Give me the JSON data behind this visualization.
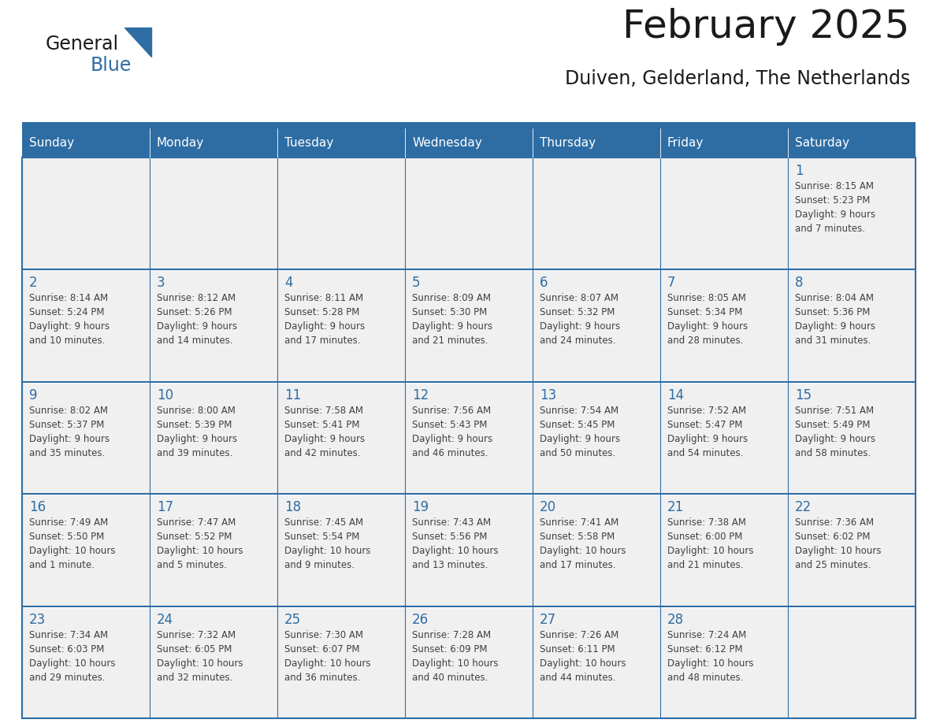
{
  "title": "February 2025",
  "subtitle": "Duiven, Gelderland, The Netherlands",
  "days_of_week": [
    "Sunday",
    "Monday",
    "Tuesday",
    "Wednesday",
    "Thursday",
    "Friday",
    "Saturday"
  ],
  "header_bg": "#2E6DA4",
  "header_text": "#FFFFFF",
  "cell_bg": "#F0F0F0",
  "cell_border_color": "#2E6DA4",
  "day_number_color": "#2E6DA4",
  "cell_text_color": "#404040",
  "title_color": "#1a1a1a",
  "subtitle_color": "#1a1a1a",
  "logo_general_color": "#1a1a1a",
  "logo_blue_color": "#2E6DA4",
  "calendar_data": [
    [
      {
        "day": "",
        "info": ""
      },
      {
        "day": "",
        "info": ""
      },
      {
        "day": "",
        "info": ""
      },
      {
        "day": "",
        "info": ""
      },
      {
        "day": "",
        "info": ""
      },
      {
        "day": "",
        "info": ""
      },
      {
        "day": "1",
        "info": "Sunrise: 8:15 AM\nSunset: 5:23 PM\nDaylight: 9 hours\nand 7 minutes."
      }
    ],
    [
      {
        "day": "2",
        "info": "Sunrise: 8:14 AM\nSunset: 5:24 PM\nDaylight: 9 hours\nand 10 minutes."
      },
      {
        "day": "3",
        "info": "Sunrise: 8:12 AM\nSunset: 5:26 PM\nDaylight: 9 hours\nand 14 minutes."
      },
      {
        "day": "4",
        "info": "Sunrise: 8:11 AM\nSunset: 5:28 PM\nDaylight: 9 hours\nand 17 minutes."
      },
      {
        "day": "5",
        "info": "Sunrise: 8:09 AM\nSunset: 5:30 PM\nDaylight: 9 hours\nand 21 minutes."
      },
      {
        "day": "6",
        "info": "Sunrise: 8:07 AM\nSunset: 5:32 PM\nDaylight: 9 hours\nand 24 minutes."
      },
      {
        "day": "7",
        "info": "Sunrise: 8:05 AM\nSunset: 5:34 PM\nDaylight: 9 hours\nand 28 minutes."
      },
      {
        "day": "8",
        "info": "Sunrise: 8:04 AM\nSunset: 5:36 PM\nDaylight: 9 hours\nand 31 minutes."
      }
    ],
    [
      {
        "day": "9",
        "info": "Sunrise: 8:02 AM\nSunset: 5:37 PM\nDaylight: 9 hours\nand 35 minutes."
      },
      {
        "day": "10",
        "info": "Sunrise: 8:00 AM\nSunset: 5:39 PM\nDaylight: 9 hours\nand 39 minutes."
      },
      {
        "day": "11",
        "info": "Sunrise: 7:58 AM\nSunset: 5:41 PM\nDaylight: 9 hours\nand 42 minutes."
      },
      {
        "day": "12",
        "info": "Sunrise: 7:56 AM\nSunset: 5:43 PM\nDaylight: 9 hours\nand 46 minutes."
      },
      {
        "day": "13",
        "info": "Sunrise: 7:54 AM\nSunset: 5:45 PM\nDaylight: 9 hours\nand 50 minutes."
      },
      {
        "day": "14",
        "info": "Sunrise: 7:52 AM\nSunset: 5:47 PM\nDaylight: 9 hours\nand 54 minutes."
      },
      {
        "day": "15",
        "info": "Sunrise: 7:51 AM\nSunset: 5:49 PM\nDaylight: 9 hours\nand 58 minutes."
      }
    ],
    [
      {
        "day": "16",
        "info": "Sunrise: 7:49 AM\nSunset: 5:50 PM\nDaylight: 10 hours\nand 1 minute."
      },
      {
        "day": "17",
        "info": "Sunrise: 7:47 AM\nSunset: 5:52 PM\nDaylight: 10 hours\nand 5 minutes."
      },
      {
        "day": "18",
        "info": "Sunrise: 7:45 AM\nSunset: 5:54 PM\nDaylight: 10 hours\nand 9 minutes."
      },
      {
        "day": "19",
        "info": "Sunrise: 7:43 AM\nSunset: 5:56 PM\nDaylight: 10 hours\nand 13 minutes."
      },
      {
        "day": "20",
        "info": "Sunrise: 7:41 AM\nSunset: 5:58 PM\nDaylight: 10 hours\nand 17 minutes."
      },
      {
        "day": "21",
        "info": "Sunrise: 7:38 AM\nSunset: 6:00 PM\nDaylight: 10 hours\nand 21 minutes."
      },
      {
        "day": "22",
        "info": "Sunrise: 7:36 AM\nSunset: 6:02 PM\nDaylight: 10 hours\nand 25 minutes."
      }
    ],
    [
      {
        "day": "23",
        "info": "Sunrise: 7:34 AM\nSunset: 6:03 PM\nDaylight: 10 hours\nand 29 minutes."
      },
      {
        "day": "24",
        "info": "Sunrise: 7:32 AM\nSunset: 6:05 PM\nDaylight: 10 hours\nand 32 minutes."
      },
      {
        "day": "25",
        "info": "Sunrise: 7:30 AM\nSunset: 6:07 PM\nDaylight: 10 hours\nand 36 minutes."
      },
      {
        "day": "26",
        "info": "Sunrise: 7:28 AM\nSunset: 6:09 PM\nDaylight: 10 hours\nand 40 minutes."
      },
      {
        "day": "27",
        "info": "Sunrise: 7:26 AM\nSunset: 6:11 PM\nDaylight: 10 hours\nand 44 minutes."
      },
      {
        "day": "28",
        "info": "Sunrise: 7:24 AM\nSunset: 6:12 PM\nDaylight: 10 hours\nand 48 minutes."
      },
      {
        "day": "",
        "info": ""
      }
    ]
  ]
}
